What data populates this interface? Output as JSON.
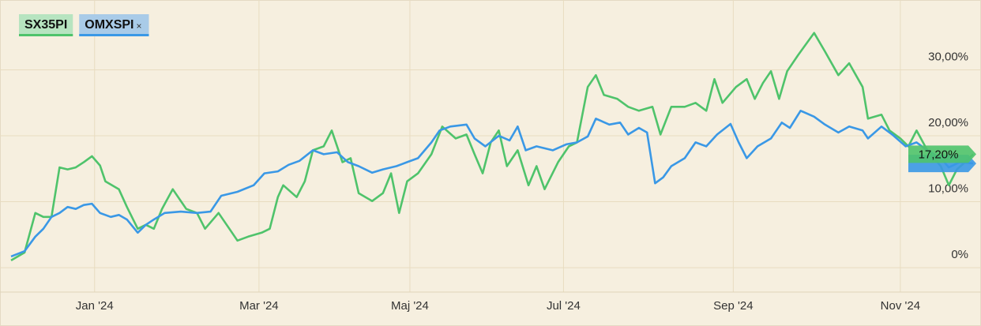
{
  "chart_data": {
    "type": "line",
    "grid": true,
    "xlim": [
      0,
      357
    ],
    "xticks": [
      {
        "value": 31,
        "label": "Jan '24"
      },
      {
        "value": 92,
        "label": "Mar '24"
      },
      {
        "value": 148,
        "label": "Maj '24"
      },
      {
        "value": 205,
        "label": "Jul '24"
      },
      {
        "value": 268,
        "label": "Sep '24"
      },
      {
        "value": 330,
        "label": "Nov '24"
      }
    ],
    "ylim": [
      -3.7,
      38.2
    ],
    "yticks": [
      {
        "value": 0,
        "label": "0%"
      },
      {
        "value": 10,
        "label": "10,00%"
      },
      {
        "value": 20,
        "label": "20,00%"
      },
      {
        "value": 30,
        "label": "30,00%"
      }
    ],
    "legend_close": "×",
    "series": [
      {
        "name": "SX35PI",
        "color": "#4fc36b",
        "legend_bg": "#b7e4c0",
        "end_label": "17,20%",
        "x": [
          0,
          5,
          9,
          12,
          15,
          18,
          21,
          24,
          27,
          30,
          33,
          35,
          40,
          43,
          47,
          50,
          53,
          56,
          60,
          65,
          69,
          72,
          77,
          81,
          84,
          88,
          93,
          96,
          99,
          101,
          106,
          109,
          112,
          116,
          119,
          123,
          126,
          129,
          134,
          138,
          141,
          144,
          147,
          151,
          156,
          160,
          165,
          169,
          172,
          175,
          178,
          181,
          184,
          188,
          192,
          195,
          198,
          203,
          207,
          210,
          214,
          217,
          220,
          225,
          229,
          233,
          238,
          241,
          245,
          250,
          254,
          258,
          261,
          264,
          269,
          273,
          276,
          279,
          282,
          285,
          288,
          292,
          298,
          302,
          307,
          311,
          316,
          318,
          323,
          326,
          330,
          333,
          336,
          340,
          345,
          348,
          351,
          354,
          357
        ],
        "values": [
          1.1,
          2.3,
          8.3,
          7.7,
          7.7,
          15.2,
          14.9,
          15.2,
          16.0,
          16.9,
          15.5,
          13.1,
          11.9,
          9.2,
          5.9,
          6.5,
          5.9,
          8.9,
          11.9,
          8.9,
          8.3,
          5.9,
          8.3,
          5.9,
          4.1,
          4.7,
          5.3,
          5.9,
          10.7,
          12.5,
          10.7,
          13.1,
          17.8,
          18.4,
          20.8,
          16.0,
          16.6,
          11.3,
          10.1,
          11.3,
          14.3,
          8.3,
          13.1,
          14.3,
          17.2,
          21.4,
          19.6,
          20.2,
          17.2,
          14.3,
          19.0,
          20.8,
          15.4,
          17.8,
          12.5,
          15.4,
          11.9,
          16.0,
          18.4,
          19.0,
          27.4,
          29.2,
          26.2,
          25.6,
          24.4,
          23.8,
          24.4,
          20.2,
          24.4,
          24.4,
          25.0,
          23.8,
          28.6,
          25.0,
          27.4,
          28.6,
          25.6,
          28.0,
          29.8,
          25.6,
          29.8,
          32.2,
          35.6,
          32.8,
          29.2,
          31.0,
          27.4,
          22.6,
          23.2,
          20.8,
          19.6,
          18.4,
          20.8,
          17.8,
          15.4,
          12.5,
          14.9,
          16.0,
          17.2
        ]
      },
      {
        "name": "OMXSPI",
        "color": "#3a98e6",
        "legend_bg": "#a9cbe8",
        "x": [
          0,
          5,
          9,
          12,
          15,
          18,
          21,
          24,
          27,
          30,
          33,
          37,
          40,
          43,
          47,
          50,
          53,
          57,
          63,
          69,
          74,
          78,
          84,
          90,
          94,
          99,
          103,
          107,
          112,
          116,
          121,
          125,
          129,
          134,
          138,
          143,
          147,
          151,
          156,
          159,
          163,
          169,
          172,
          176,
          181,
          185,
          188,
          191,
          195,
          201,
          206,
          210,
          214,
          217,
          222,
          226,
          229,
          233,
          236,
          239,
          242,
          245,
          250,
          254,
          258,
          262,
          267,
          270,
          273,
          277,
          282,
          286,
          289,
          293,
          298,
          302,
          307,
          311,
          316,
          318,
          323,
          327,
          332,
          336,
          340,
          345,
          348,
          352,
          357
        ],
        "values": [
          1.7,
          2.5,
          4.7,
          5.9,
          7.7,
          8.3,
          9.2,
          8.9,
          9.5,
          9.7,
          8.3,
          7.7,
          8.0,
          7.3,
          5.3,
          6.5,
          7.3,
          8.3,
          8.5,
          8.3,
          8.5,
          10.9,
          11.5,
          12.5,
          14.3,
          14.6,
          15.6,
          16.2,
          17.8,
          17.2,
          17.5,
          16.0,
          15.4,
          14.4,
          14.9,
          15.4,
          16.0,
          16.6,
          19.0,
          20.8,
          21.4,
          21.7,
          19.6,
          18.4,
          20.0,
          19.3,
          21.4,
          17.8,
          18.4,
          17.8,
          18.7,
          19.0,
          19.9,
          22.6,
          21.7,
          22.0,
          20.2,
          21.2,
          20.5,
          12.8,
          13.7,
          15.4,
          16.6,
          19.0,
          18.4,
          20.2,
          21.8,
          19.0,
          16.6,
          18.4,
          19.6,
          22.0,
          21.2,
          23.8,
          22.9,
          21.7,
          20.5,
          21.4,
          20.8,
          19.6,
          21.4,
          20.2,
          18.4,
          19.0,
          17.8,
          16.6,
          15.2,
          16.0,
          15.8
        ]
      }
    ]
  }
}
